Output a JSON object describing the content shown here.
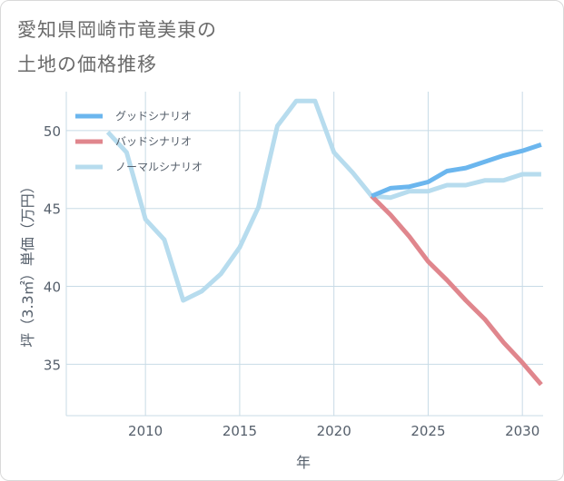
{
  "title": {
    "line1": "愛知県岡崎市竜美東の",
    "line2": "土地の価格推移"
  },
  "colors": {
    "good": "#6bb6ee",
    "bad": "#e0868d",
    "normal": "#b7dcee",
    "grid": "#c8dbe6",
    "axis": "#555f6b"
  },
  "chart_data": {
    "type": "line",
    "xlabel": "年",
    "ylabel": "坪（3.3㎡）単価（万円）",
    "xlim": [
      2005.8,
      2031.1
    ],
    "ylim": [
      31.7,
      52.5
    ],
    "xticks": [
      2010,
      2015,
      2020,
      2025,
      2030
    ],
    "yticks": [
      35,
      40,
      45,
      50
    ],
    "xtick_labels": [
      "2010",
      "2015",
      "2020",
      "2025",
      "2030"
    ],
    "ytick_labels": [
      "35",
      "40",
      "45",
      "50"
    ],
    "grid": true,
    "legend_position": "top-left",
    "series": [
      {
        "name": "グッドシナリオ",
        "color": "#6bb6ee",
        "x": [
          2022,
          2023,
          2024,
          2025,
          2026,
          2027,
          2028,
          2029,
          2030,
          2031
        ],
        "y": [
          45.8,
          46.3,
          46.4,
          46.7,
          47.4,
          47.6,
          48.0,
          48.4,
          48.7,
          49.1
        ]
      },
      {
        "name": "バッドシナリオ",
        "color": "#e0868d",
        "x": [
          2022,
          2023,
          2024,
          2025,
          2026,
          2027,
          2028,
          2029,
          2030,
          2031
        ],
        "y": [
          45.8,
          44.6,
          43.2,
          41.6,
          40.4,
          39.1,
          37.9,
          36.4,
          35.1,
          33.7
        ]
      },
      {
        "name": "ノーマルシナリオ",
        "color": "#b7dcee",
        "x": [
          2008,
          2009,
          2010,
          2011,
          2012,
          2013,
          2014,
          2015,
          2016,
          2017,
          2018,
          2019,
          2020,
          2021,
          2022,
          2023,
          2024,
          2025,
          2026,
          2027,
          2028,
          2029,
          2030,
          2031
        ],
        "y": [
          49.9,
          48.6,
          44.3,
          43.0,
          39.1,
          39.7,
          40.8,
          42.5,
          45.1,
          50.3,
          51.9,
          51.9,
          48.6,
          47.3,
          45.8,
          45.7,
          46.1,
          46.1,
          46.5,
          46.5,
          46.8,
          46.8,
          47.2,
          47.2
        ]
      }
    ]
  }
}
